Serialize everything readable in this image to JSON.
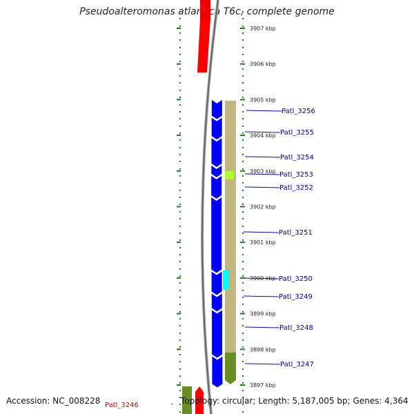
{
  "title": "Pseudoalteromonas atlantica T6c, complete genome",
  "accession": "Accession: NC_008228",
  "footer": "Topology: circular; Length: 5,187,005 bp; Genes: 4,364",
  "colors": {
    "forward_gene": "#ff0000",
    "reverse_gene": "#0000ff",
    "annotation_track": "#c2b682",
    "annotation_dark": "#6b8e23",
    "highlight_green": "#adff2f",
    "highlight_cyan": "#00ffff",
    "backbone": "#777777",
    "tick": "#1a7a1a"
  },
  "kbp_labels": [
    {
      "label": "3907 kbp",
      "kbp": 3907
    },
    {
      "label": "3906 kbp",
      "kbp": 3906
    },
    {
      "label": "3905 kbp",
      "kbp": 3905
    },
    {
      "label": "3904 kbp",
      "kbp": 3904
    },
    {
      "label": "3903 kbp",
      "kbp": 3903
    },
    {
      "label": "3902 kbp",
      "kbp": 3902
    },
    {
      "label": "3901 kbp",
      "kbp": 3901
    },
    {
      "label": "3900 kbp",
      "kbp": 3900
    },
    {
      "label": "3899 kbp",
      "kbp": 3899
    },
    {
      "label": "3898 kbp",
      "kbp": 3898
    },
    {
      "label": "3897 kbp",
      "kbp": 3897
    }
  ],
  "genes": [
    {
      "name": "Patl_3256",
      "strand": "reverse",
      "start_kbp": 3904.55,
      "end_kbp": 3905.05
    },
    {
      "name": "Patl_3255",
      "strand": "reverse",
      "start_kbp": 3903.98,
      "end_kbp": 3904.55
    },
    {
      "name": "Patl_3254",
      "strand": "reverse",
      "start_kbp": 3903.21,
      "end_kbp": 3903.98
    },
    {
      "name": "Patl_3253",
      "strand": "reverse",
      "start_kbp": 3902.92,
      "end_kbp": 3903.21
    },
    {
      "name": "Patl_3252",
      "strand": "reverse",
      "start_kbp": 3902.32,
      "end_kbp": 3902.92
    },
    {
      "name": "Patl_3251",
      "strand": "reverse",
      "start_kbp": 3900.24,
      "end_kbp": 3902.32
    },
    {
      "name": "Patl_3250",
      "strand": "reverse",
      "start_kbp": 3899.62,
      "end_kbp": 3900.24
    },
    {
      "name": "Patl_3249",
      "strand": "reverse",
      "start_kbp": 3899.16,
      "end_kbp": 3899.62
    },
    {
      "name": "Patl_3248",
      "strand": "reverse",
      "start_kbp": 3897.86,
      "end_kbp": 3899.16
    },
    {
      "name": "Patl_3247",
      "strand": "reverse",
      "start_kbp": 3897.03,
      "end_kbp": 3897.86
    },
    {
      "name": "Patl_3246",
      "strand": "forward",
      "start_kbp": 3896.2,
      "end_kbp": 3896.85
    }
  ]
}
